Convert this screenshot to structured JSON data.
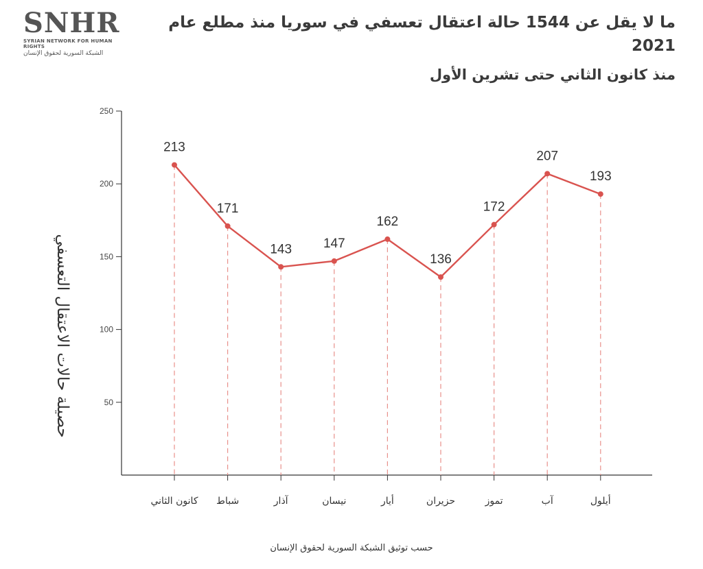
{
  "logo": {
    "mark": "SNHR",
    "english": "SYRIAN NETWORK FOR HUMAN RIGHTS",
    "arabic": "الشبكة السورية لحقوق الإنسان"
  },
  "header": {
    "title": "ما لا يقل عن 1544 حالة اعتقال تعسفي في سوريا منذ مطلع عام 2021",
    "subtitle": "منذ كانون الثاني حتى تشرين الأول"
  },
  "source": "حسب توثيق الشبكة السورية لحقوق الإنسان",
  "colors": {
    "line": "#d9534f",
    "axis": "#333333",
    "guide": "#e8908a"
  },
  "chart_data": {
    "type": "line",
    "title": "ما لا يقل عن 1544 حالة اعتقال تعسفي في سوريا منذ مطلع عام 2021",
    "subtitle": "منذ كانون الثاني حتى تشرين الأول",
    "ylabel": "حصيلة حالات الاعتقال التعسفي",
    "xlabel": "",
    "categories": [
      "كانون الثاني",
      "شباط",
      "آذار",
      "نيسان",
      "أيار",
      "حزيران",
      "تموز",
      "آب",
      "أيلول"
    ],
    "values": [
      213,
      171,
      143,
      147,
      162,
      136,
      172,
      207,
      193
    ],
    "ylim": [
      0,
      250
    ],
    "yticks": [
      50,
      100,
      150,
      200,
      250
    ],
    "grid": false,
    "legend": "none",
    "data_labels": true
  }
}
